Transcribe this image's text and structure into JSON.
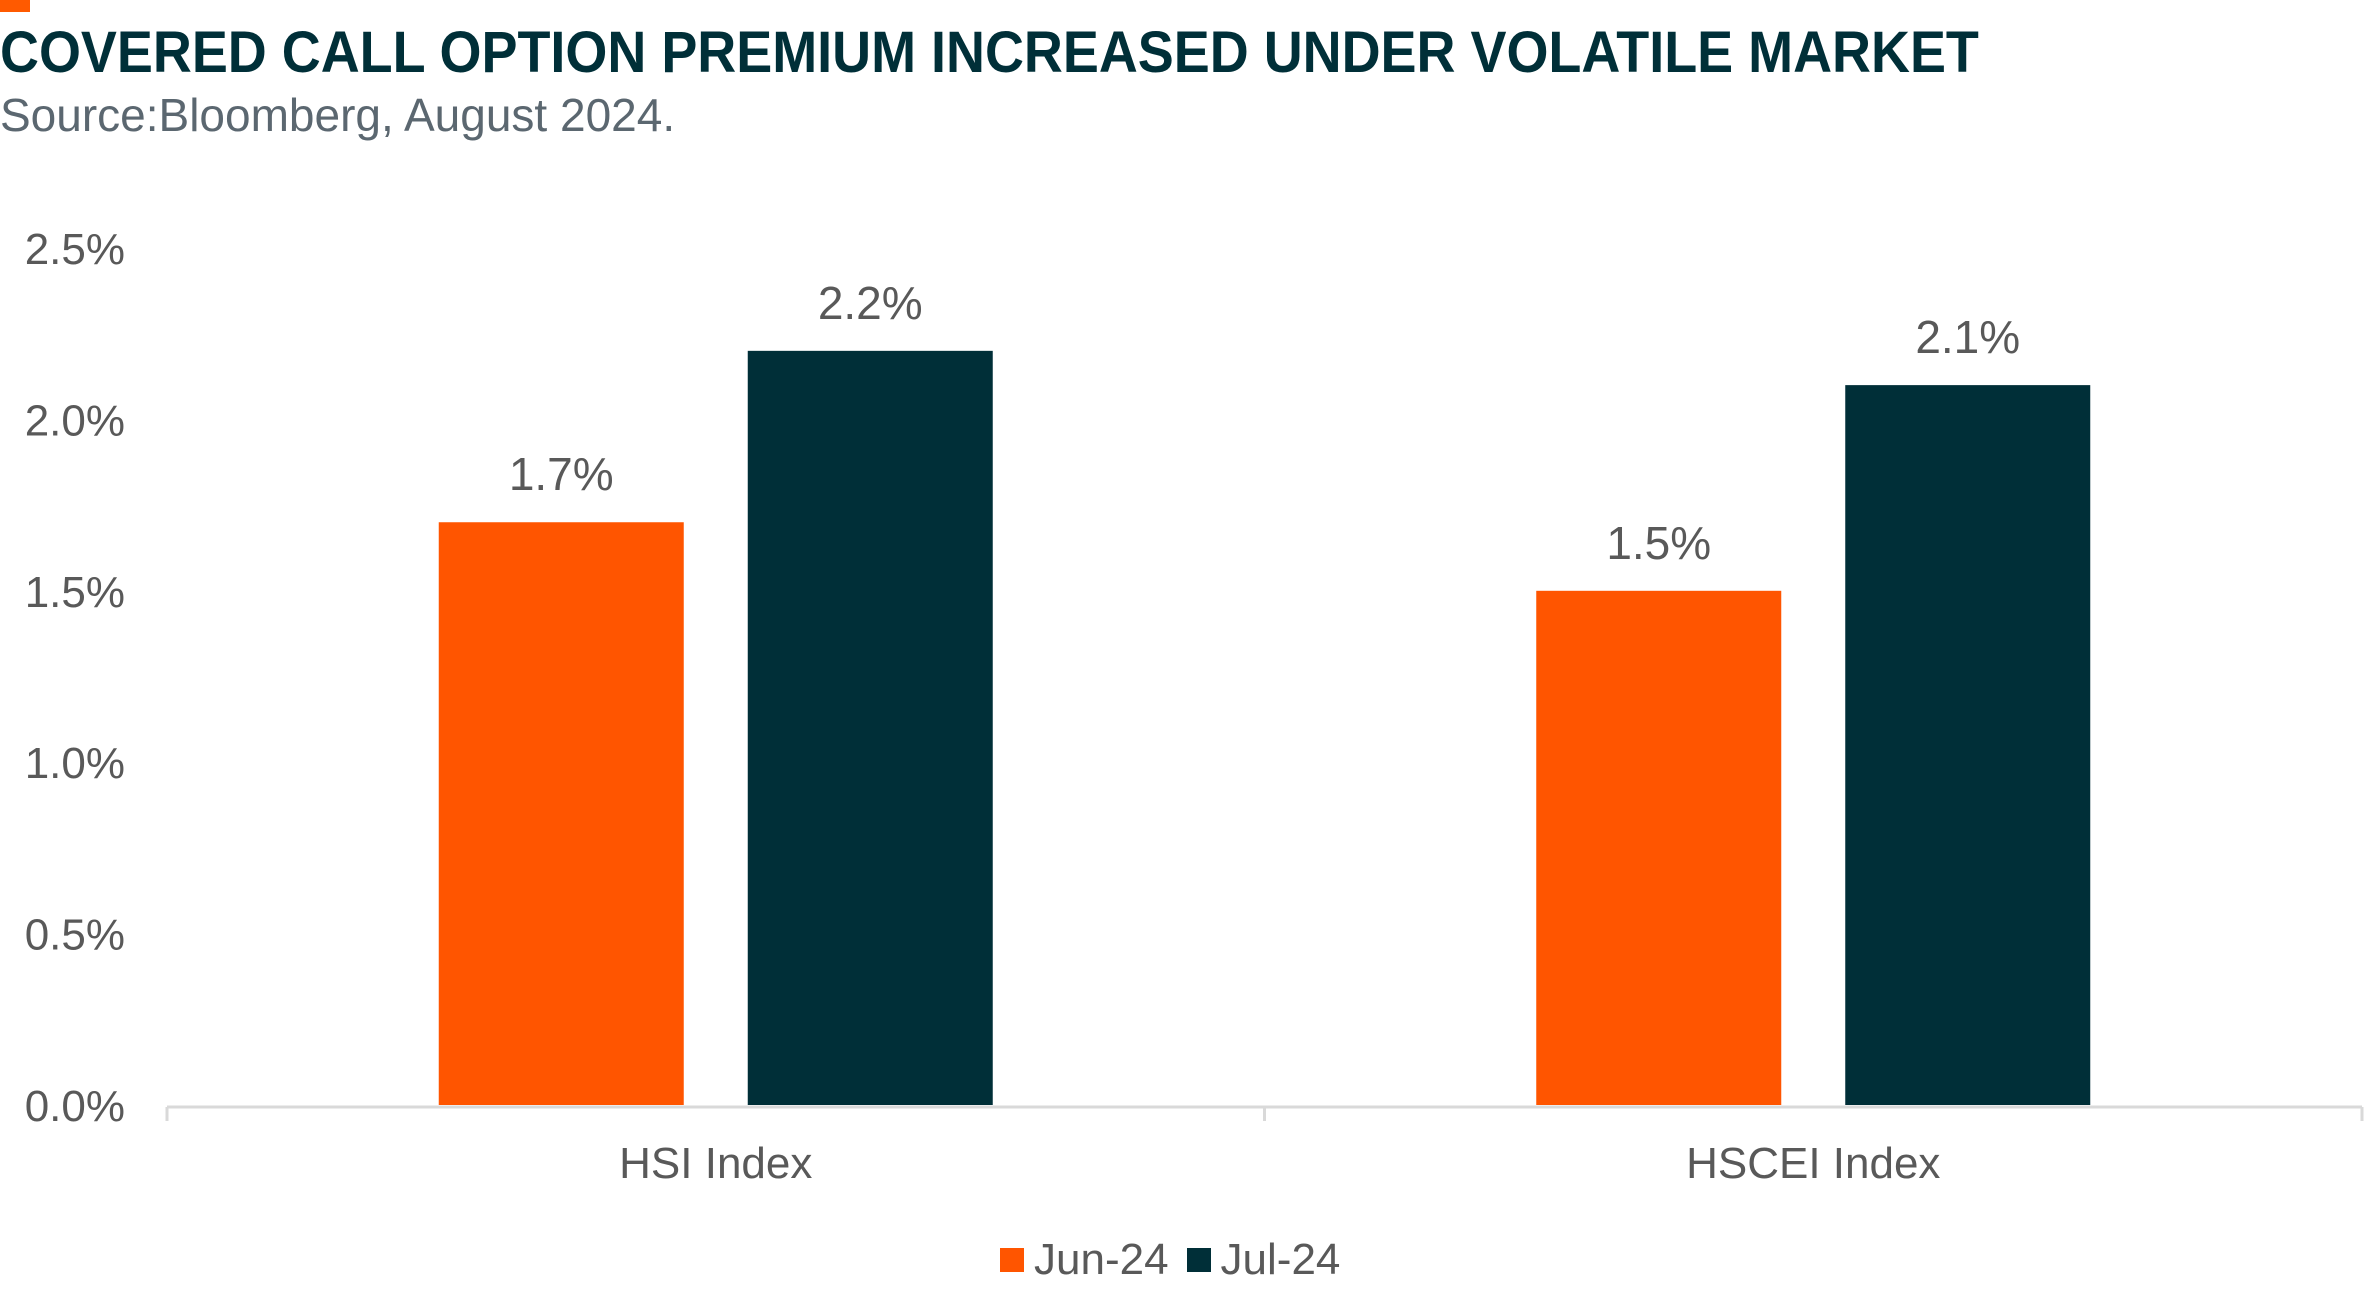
{
  "header": {
    "title": "COVERED CALL OPTION PREMIUM INCREASED UNDER VOLATILE MARKET",
    "subtitle": "Source:Bloomberg, August 2024."
  },
  "colors": {
    "accent": "#ff5a00",
    "title": "#002f38",
    "jun": "#ff5500",
    "jul": "#002f38",
    "axis_text": "#595959",
    "axis_line": "#d9d9d9"
  },
  "chart_data": {
    "type": "bar",
    "title": "",
    "xlabel": "",
    "ylabel": "",
    "categories": [
      "HSI Index",
      "HSCEI Index"
    ],
    "series": [
      {
        "name": "Jun-24",
        "values": [
          1.7,
          1.5
        ],
        "labels": [
          "1.7%",
          "1.5%"
        ]
      },
      {
        "name": "Jul-24",
        "values": [
          2.2,
          2.1
        ],
        "labels": [
          "2.2%",
          "2.1%"
        ]
      }
    ],
    "ylim": [
      0,
      2.5
    ],
    "yticks": [
      "0.0%",
      "0.5%",
      "1.0%",
      "1.5%",
      "2.0%",
      "2.5%"
    ],
    "grid": false,
    "legend_position": "bottom"
  }
}
